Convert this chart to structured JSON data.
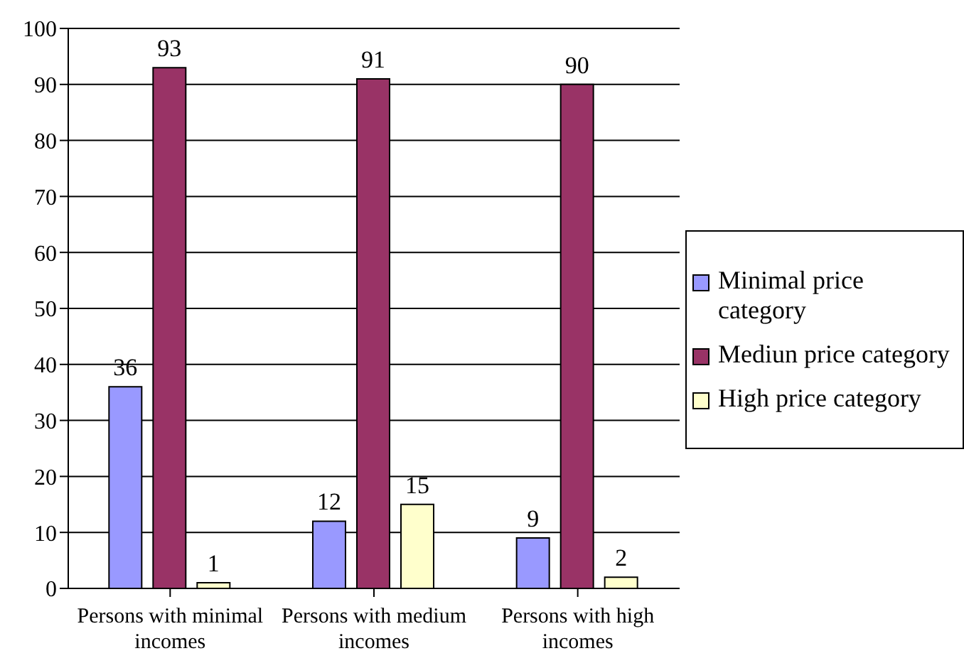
{
  "chart_data": {
    "type": "bar",
    "categories": [
      "Persons with minimal incomes",
      "Persons with medium incomes",
      "Persons with high incomes"
    ],
    "series": [
      {
        "name": "Minimal price category",
        "color": "#9999ff",
        "values": [
          36,
          12,
          9
        ]
      },
      {
        "name": "Mediun price category",
        "color": "#993366",
        "values": [
          93,
          91,
          90
        ]
      },
      {
        "name": "High price category",
        "color": "#ffffcc",
        "values": [
          1,
          15,
          2
        ]
      }
    ],
    "ylim": [
      0,
      100
    ],
    "yticks": [
      0,
      10,
      20,
      30,
      40,
      50,
      60,
      70,
      80,
      90,
      100
    ],
    "grid": "y",
    "legend": "right",
    "data_labels": true
  }
}
